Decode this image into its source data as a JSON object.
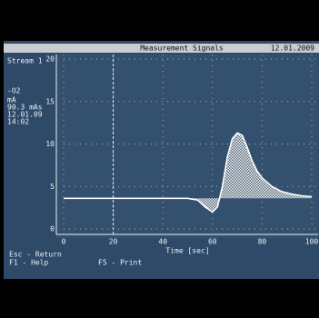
{
  "header": {
    "title": "Measurement Signals",
    "date": "12.01.2009"
  },
  "sidebar": {
    "stream": "Stream 1",
    "lines": [
      "-O2",
      "mA",
      "90.3 mAs",
      "12.01.09",
      "14:02"
    ]
  },
  "chart_data": {
    "type": "line",
    "xlabel": "Time [sec]",
    "x": [
      0,
      10,
      20,
      30,
      40,
      50,
      54,
      57,
      60,
      62,
      64,
      66,
      68,
      70,
      72,
      74,
      76,
      78,
      80,
      84,
      88,
      92,
      96,
      100
    ],
    "series": [
      {
        "color": "#ffffff",
        "values": [
          3.6,
          3.6,
          3.6,
          3.6,
          3.6,
          3.6,
          3.4,
          2.6,
          2.0,
          2.6,
          5,
          8.5,
          10.6,
          11.3,
          11,
          9.6,
          8,
          6.8,
          6,
          5,
          4.4,
          4.1,
          3.9,
          3.8
        ]
      }
    ],
    "xlim": [
      0,
      100
    ],
    "ylim": [
      0,
      20
    ],
    "xticks": [
      0,
      20,
      40,
      60,
      80,
      100
    ],
    "yticks": [
      0,
      5,
      10,
      15,
      20
    ],
    "grid": true,
    "cursor": 20
  },
  "footer": {
    "keys": [
      "Esc - Return",
      "F1 - Help",
      "F5 - Print"
    ]
  }
}
